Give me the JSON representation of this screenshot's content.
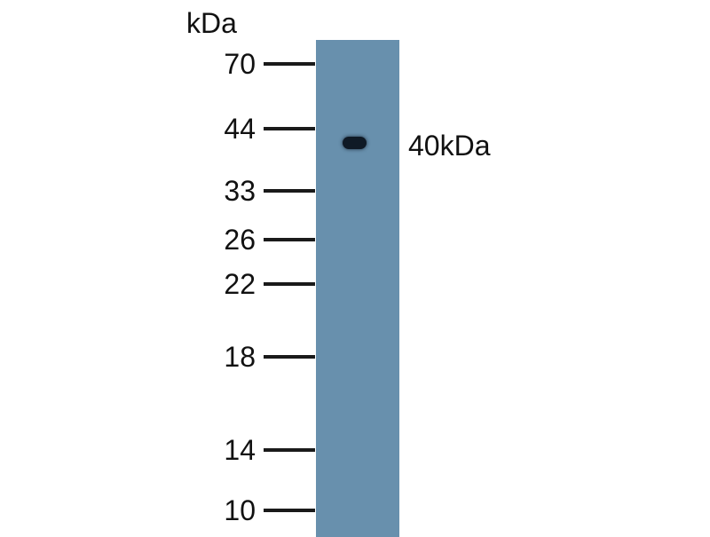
{
  "unit_label": "kDa",
  "markers": [
    "70",
    "44",
    "33",
    "26",
    "22",
    "18",
    "14",
    "10"
  ],
  "band_label": "40kDa",
  "colors": {
    "lane": "#6890ad",
    "band": "#0f1a26"
  }
}
